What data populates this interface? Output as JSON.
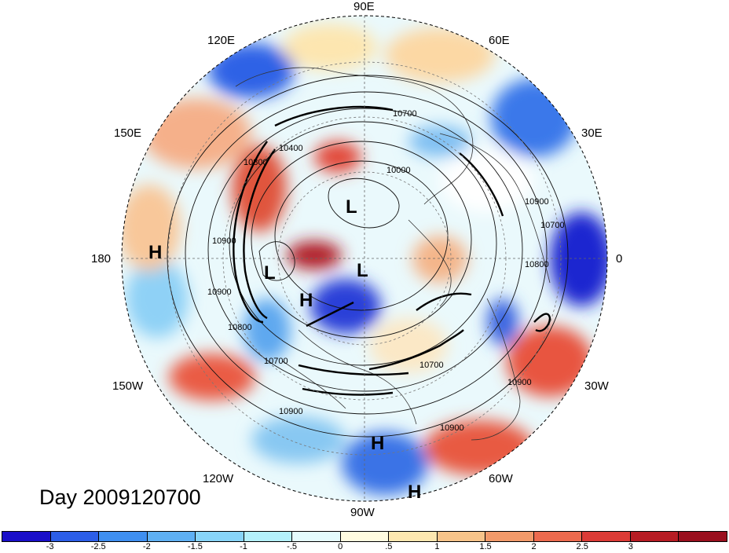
{
  "title": "Day 2009120700",
  "longitude_labels": {
    "lon_90E": "90E",
    "lon_60E": "60E",
    "lon_30E": "30E",
    "lon_0": "0",
    "lon_30W": "30W",
    "lon_60W": "60W",
    "lon_90W": "90W",
    "lon_120W": "120W",
    "lon_150W": "150W",
    "lon_180": "180",
    "lon_150E": "150E",
    "lon_120E": "120E"
  },
  "pressure_centers": [
    {
      "type": "L"
    },
    {
      "type": "L"
    },
    {
      "type": "L"
    },
    {
      "type": "H"
    },
    {
      "type": "H"
    },
    {
      "type": "H"
    },
    {
      "type": "H"
    }
  ],
  "contour_labels": [
    "10000",
    "10400",
    "10700",
    "10700",
    "10700",
    "10800",
    "10800",
    "10800",
    "10900",
    "10900",
    "10900",
    "10900",
    "10900",
    "10700",
    "10900"
  ],
  "colorbar": {
    "colors": [
      "#1a0fc9",
      "#2c5ee8",
      "#3f8ff0",
      "#5fb0f3",
      "#88d4f8",
      "#b4f0fb",
      "#e4fbfd",
      "#fffbe0",
      "#fde7b0",
      "#f7c48a",
      "#f29a6a",
      "#ec6a4e",
      "#dc3b36",
      "#b71c24",
      "#9a0f1e"
    ],
    "tick_labels": [
      "-3",
      "-2.5",
      "-2",
      "-1.5",
      "-1",
      "-.5",
      "0",
      ".5",
      "1",
      "1.5",
      "2",
      "2.5",
      "3"
    ]
  },
  "icons": [
    "polar-stereographic-map"
  ]
}
